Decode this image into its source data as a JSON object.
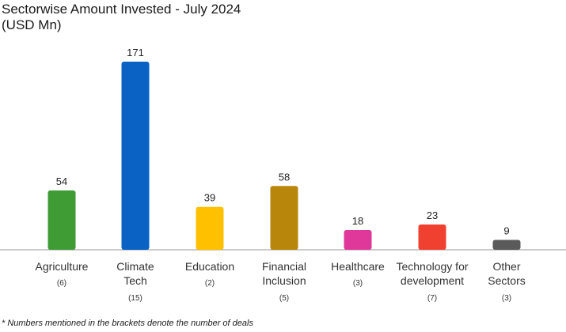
{
  "chart_data": {
    "type": "bar",
    "title": "Sectorwise Amount Invested - July 2024",
    "subtitle": "(USD Mn)",
    "categories": [
      [
        "Agriculture"
      ],
      [
        "Climate",
        "Tech"
      ],
      [
        "Education"
      ],
      [
        "Financial",
        "Inclusion"
      ],
      [
        "Healthcare"
      ],
      [
        "Technology for",
        "development"
      ],
      [
        "Other",
        "Sectors"
      ]
    ],
    "deals": [
      "(6)",
      "(15)",
      "(2)",
      "(5)",
      "(3)",
      "(7)",
      "(3)"
    ],
    "values": [
      54,
      171,
      39,
      58,
      18,
      23,
      9
    ],
    "colors": [
      "#3f9c35",
      "#0a62c4",
      "#ffc000",
      "#b8860b",
      "#e0389a",
      "#f04030",
      "#5a5a5a"
    ],
    "ylim": [
      0,
      171
    ],
    "grid": false,
    "legend": "none",
    "footnote": "* Numbers mentioned in the brackets denote the number of deals"
  }
}
